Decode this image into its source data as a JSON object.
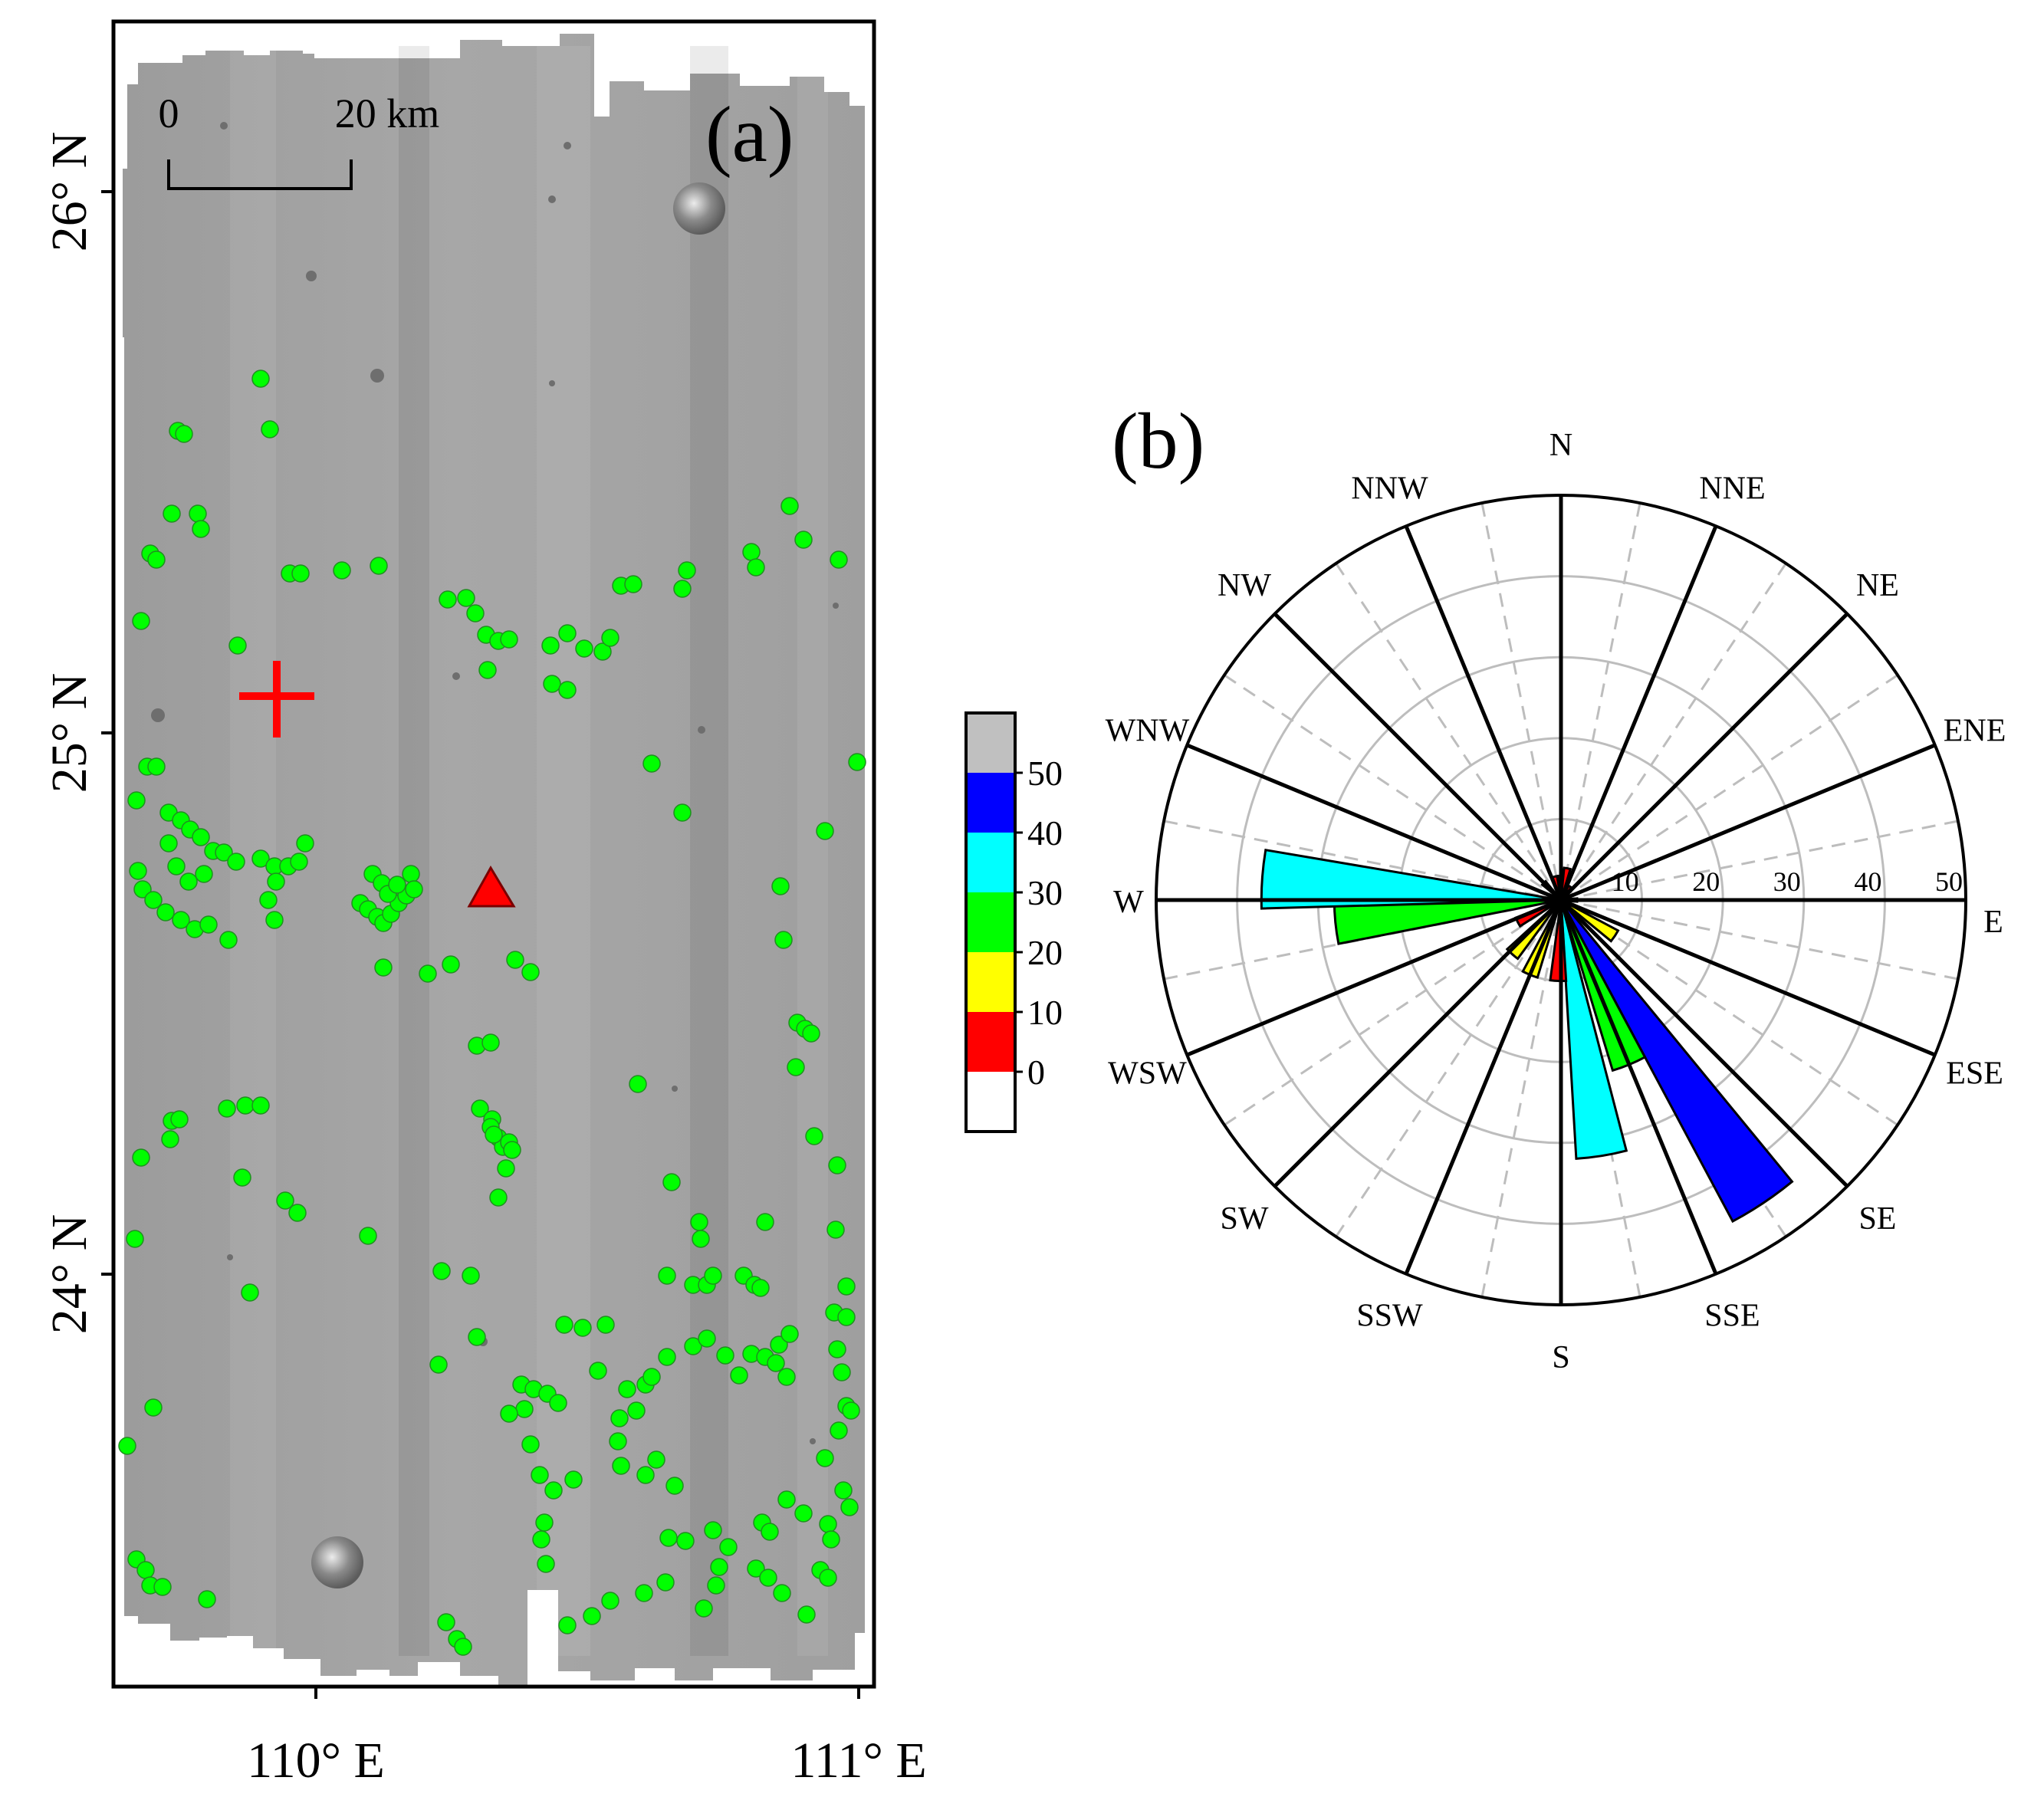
{
  "panel_a": {
    "label": "(a)",
    "lat_labels": [
      "26° N",
      "25° N",
      "24° N"
    ],
    "lon_labels": [
      "110° E",
      "111° E"
    ],
    "scale_bar": {
      "start_label": "0",
      "end_label": "20 km"
    },
    "markers": {
      "cross_color": "#ff0000",
      "triangle_color": "#ff0000",
      "feature_color": "#00ff00"
    }
  },
  "panel_b": {
    "label": "(b)",
    "colorbar": {
      "ticks": [
        "50",
        "40",
        "30",
        "20",
        "10",
        "0"
      ],
      "colors": [
        "#c0c0c0",
        "#0000ff",
        "#00ffff",
        "#00ff00",
        "#ffff00",
        "#ff0000",
        "#ffffff"
      ]
    }
  },
  "chart_data": {
    "type": "rose",
    "title": "(b)",
    "directions": [
      "N",
      "NNE",
      "NE",
      "ENE",
      "E",
      "ESE",
      "SE",
      "SSE",
      "S",
      "SSW",
      "SW",
      "WSW",
      "W",
      "WNW",
      "NW",
      "NNW"
    ],
    "radial_ticks": [
      "10",
      "20",
      "30",
      "40",
      "50"
    ],
    "rmax": 50,
    "sector_width_deg": 11.25,
    "bins": [
      {
        "azimuth": 0,
        "value": 3,
        "color": "#ff0000"
      },
      {
        "azimuth": 11.25,
        "value": 4,
        "color": "#ff0000"
      },
      {
        "azimuth": 33.75,
        "value": 2,
        "color": "#ff0000"
      },
      {
        "azimuth": 90,
        "value": 2,
        "color": "#ff0000"
      },
      {
        "azimuth": 123.75,
        "value": 8,
        "color": "#ffff00"
      },
      {
        "azimuth": 146.25,
        "value": 45,
        "color": "#0000ff"
      },
      {
        "azimuth": 157.5,
        "value": 22,
        "color": "#00ff00"
      },
      {
        "azimuth": 171,
        "value": 32,
        "color": "#00ffff"
      },
      {
        "azimuth": 182,
        "value": 10,
        "color": "#ff0000"
      },
      {
        "azimuth": 202.5,
        "value": 10,
        "color": "#ffff00"
      },
      {
        "azimuth": 222,
        "value": 9,
        "color": "#ffff00"
      },
      {
        "azimuth": 243,
        "value": 6,
        "color": "#ff0000"
      },
      {
        "azimuth": 264.5,
        "value": 28,
        "color": "#00ff00"
      },
      {
        "azimuth": 274,
        "value": 37,
        "color": "#00ffff"
      },
      {
        "azimuth": 315,
        "value": 3,
        "color": "#ff0000"
      },
      {
        "azimuth": 345,
        "value": 3,
        "color": "#ff0000"
      }
    ]
  }
}
